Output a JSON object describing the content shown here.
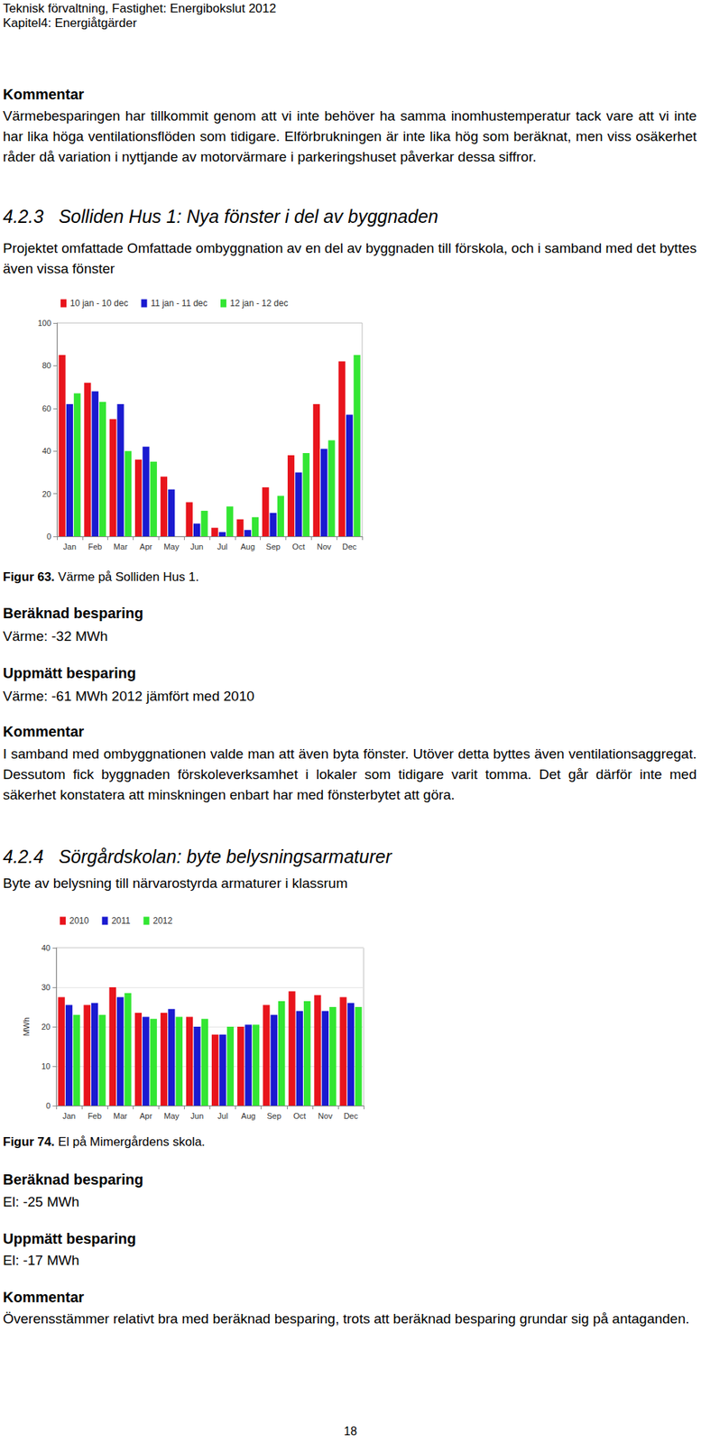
{
  "header": {
    "line1": "Teknisk förvaltning, Fastighet: Energibokslut 2012",
    "line2": "Kapitel4: Energiåtgärder"
  },
  "blocks": [
    {
      "kind": "label",
      "text": "Kommentar"
    },
    {
      "kind": "paragraph",
      "text": "Värmebesparingen har tillkommit genom att vi inte behöver ha samma inomhustemperatur tack vare att vi inte har lika höga ventilationsflöden som tidigare. Elförbrukningen är inte lika hög som beräknat, men viss osäkerhet råder då variation i nyttjande av motorvärmare i parkeringshuset påverkar dessa siffror."
    },
    {
      "kind": "heading",
      "text": "4.2.3   Solliden Hus 1: Nya fönster i del av byggnaden"
    },
    {
      "kind": "paragraph",
      "text": "Projektet omfattade Omfattade ombyggnation av en del av byggnaden till förskola, och i samband med det byttes även vissa fönster"
    },
    {
      "kind": "chart",
      "chart": 0
    },
    {
      "kind": "caption",
      "bold": "Figur 63.",
      "text": " Värme på Solliden Hus 1."
    },
    {
      "kind": "label",
      "text": "Beräknad besparing"
    },
    {
      "kind": "plain",
      "text": "Värme: -32 MWh"
    },
    {
      "kind": "label",
      "text": "Uppmätt besparing"
    },
    {
      "kind": "plain",
      "text": "Värme: -61 MWh 2012 jämfört med 2010"
    },
    {
      "kind": "label",
      "text": "Kommentar"
    },
    {
      "kind": "paragraph",
      "text": "I samband med ombyggnationen valde man att även byta fönster. Utöver detta byttes även ventilationsaggregat. Dessutom fick byggnaden förskoleverksamhet i lokaler som tidigare varit tomma. Det går därför inte med säkerhet konstatera att minskningen enbart har med fönsterbytet att göra."
    },
    {
      "kind": "heading",
      "text": "4.2.4   Sörgårdskolan: byte belysningsarmaturer"
    },
    {
      "kind": "plain",
      "text": "Byte av belysning till närvarostyrda armaturer i klassrum"
    },
    {
      "kind": "chart",
      "chart": 1
    },
    {
      "kind": "caption",
      "bold": "Figur 74.",
      "text": " El på Mimergårdens skola."
    },
    {
      "kind": "label",
      "text": "Beräknad besparing"
    },
    {
      "kind": "plain",
      "text": "El: -25 MWh"
    },
    {
      "kind": "label",
      "text": "Uppmätt besparing"
    },
    {
      "kind": "plain",
      "text": "El: -17 MWh"
    },
    {
      "kind": "label",
      "text": "Kommentar"
    },
    {
      "kind": "paragraph",
      "text": "Överensstämmer relativt bra med beräknad besparing, trots att beräknad besparing grundar sig på antaganden."
    }
  ],
  "page_number": "18",
  "chart_data": [
    {
      "type": "bar",
      "categories": [
        "Jan",
        "Feb",
        "Mar",
        "Apr",
        "May",
        "Jun",
        "Jul",
        "Aug",
        "Sep",
        "Oct",
        "Nov",
        "Dec"
      ],
      "series": [
        {
          "name": "10 jan - 10 dec",
          "color": "#e8141c",
          "values": [
            85,
            72,
            55,
            36,
            28,
            16,
            4,
            8,
            23,
            38,
            62,
            82
          ]
        },
        {
          "name": "11 jan - 11 dec",
          "color": "#1a1ad0",
          "values": [
            62,
            68,
            62,
            42,
            22,
            6,
            2,
            3,
            11,
            30,
            41,
            57
          ]
        },
        {
          "name": "12 jan - 12 dec",
          "color": "#33e633",
          "values": [
            67,
            63,
            40,
            35,
            null,
            12,
            14,
            9,
            19,
            39,
            45,
            85
          ]
        }
      ],
      "ylim": [
        0,
        100
      ],
      "yticks": [
        0,
        20,
        40,
        60,
        80,
        100
      ],
      "grid": false,
      "legend": "top"
    },
    {
      "type": "bar",
      "y_label": "MWh",
      "categories": [
        "Jan",
        "Feb",
        "Mar",
        "Apr",
        "May",
        "Jun",
        "Jul",
        "Aug",
        "Sep",
        "Oct",
        "Nov",
        "Dec"
      ],
      "series": [
        {
          "name": "2010",
          "color": "#e8141c",
          "values": [
            27.5,
            25.5,
            30,
            23.5,
            23.5,
            22.5,
            18,
            20,
            25.5,
            29,
            28,
            27.5
          ]
        },
        {
          "name": "2011",
          "color": "#1a1ad0",
          "values": [
            25.5,
            26,
            27.5,
            22.5,
            24.5,
            20,
            18,
            20.5,
            23,
            24,
            24,
            26
          ]
        },
        {
          "name": "2012",
          "color": "#33e633",
          "values": [
            23,
            23,
            28.5,
            22,
            22.5,
            22,
            20,
            20.5,
            26.5,
            26.5,
            25,
            25
          ]
        }
      ],
      "ylim": [
        0,
        40
      ],
      "yticks": [
        0,
        10,
        20,
        30,
        40
      ],
      "grid": true,
      "legend": "top"
    }
  ]
}
